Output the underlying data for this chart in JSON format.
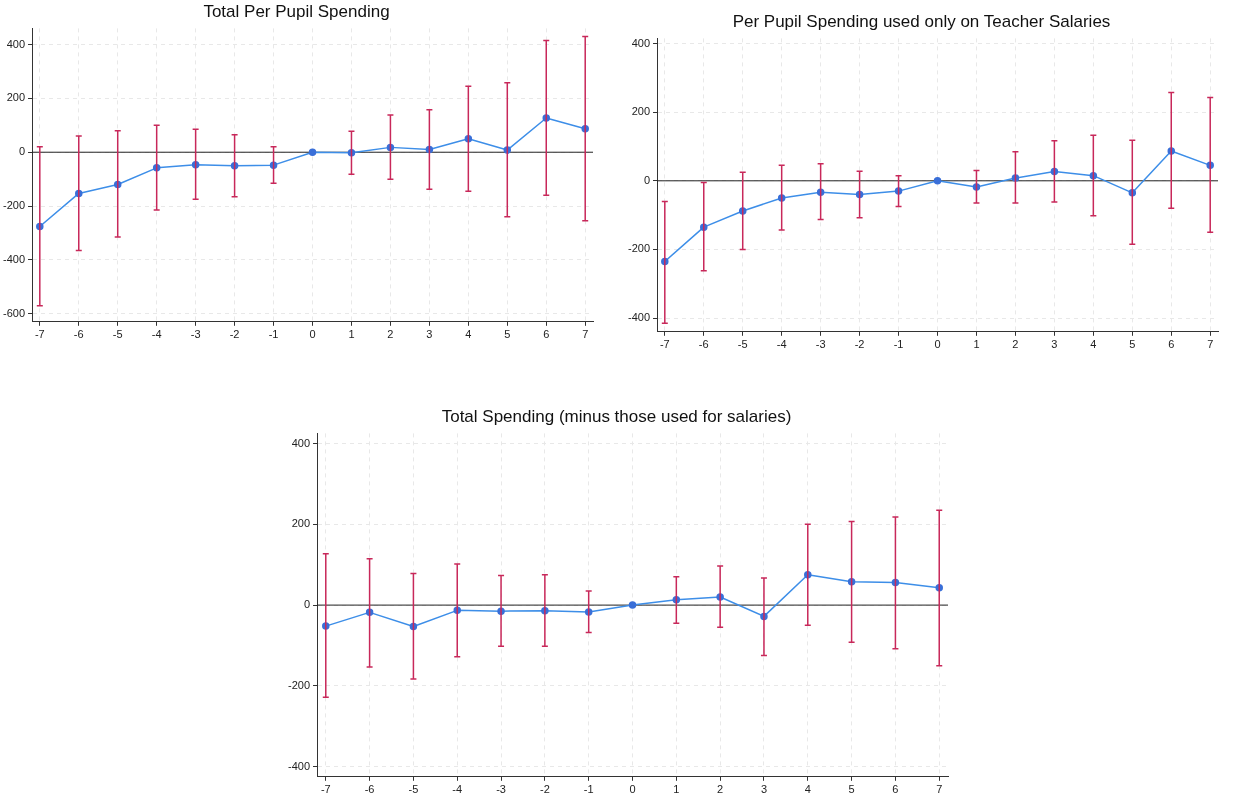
{
  "chart_data": [
    {
      "type": "line",
      "title": "Total Per Pupil Spending",
      "x": [
        -7,
        -6,
        -5,
        -4,
        -3,
        -2,
        -1,
        0,
        1,
        2,
        3,
        4,
        5,
        6,
        7
      ],
      "series": [
        {
          "color": "#3d8ee8",
          "values": [
            -276,
            -153,
            -120,
            -58,
            -47,
            -50,
            -48,
            0,
            -2,
            18,
            10,
            50,
            8,
            127,
            87
          ],
          "errors": [
            [
              -570,
              20
            ],
            [
              -365,
              60
            ],
            [
              -315,
              80
            ],
            [
              -215,
              100
            ],
            [
              -175,
              85
            ],
            [
              -165,
              65
            ],
            [
              -115,
              20
            ],
            null,
            [
              -82,
              78
            ],
            [
              -100,
              138
            ],
            [
              -138,
              158
            ],
            [
              -145,
              245
            ],
            [
              -240,
              258
            ],
            [
              -160,
              415
            ],
            [
              -255,
              430
            ]
          ]
        }
      ],
      "xlim": [
        -7.2,
        7.2
      ],
      "xticks": [
        -7,
        -6,
        -5,
        -4,
        -3,
        -2,
        -1,
        0,
        1,
        2,
        3,
        4,
        5,
        6,
        7
      ],
      "ylim": [
        -630,
        460
      ],
      "yticks": [
        -600,
        -400,
        -200,
        0,
        200,
        400
      ],
      "ref_lines": [
        {
          "axis": "y",
          "value": 0,
          "color": "#222222"
        }
      ],
      "grid": true,
      "legend": false,
      "marker": "circle",
      "line_style": "solid"
    },
    {
      "type": "line",
      "title": "Per Pupil Spending used only on Teacher Salaries",
      "x": [
        -7,
        -6,
        -5,
        -4,
        -3,
        -2,
        -1,
        0,
        1,
        2,
        3,
        4,
        5,
        6,
        7
      ],
      "series": [
        {
          "color": "#3d8ee8",
          "values": [
            -235,
            -135,
            -88,
            -50,
            -33,
            -40,
            -30,
            0,
            -18,
            8,
            27,
            15,
            -35,
            87,
            45
          ],
          "errors": [
            [
              -415,
              -60
            ],
            [
              -262,
              -5
            ],
            [
              -200,
              25
            ],
            [
              -143,
              45
            ],
            [
              -113,
              50
            ],
            [
              -108,
              28
            ],
            [
              -75,
              15
            ],
            null,
            [
              -65,
              30
            ],
            [
              -65,
              85
            ],
            [
              -62,
              117
            ],
            [
              -102,
              133
            ],
            [
              -185,
              118
            ],
            [
              -80,
              257
            ],
            [
              -150,
              243
            ]
          ]
        }
      ],
      "xlim": [
        -7.2,
        7.2
      ],
      "xticks": [
        -7,
        -6,
        -5,
        -4,
        -3,
        -2,
        -1,
        0,
        1,
        2,
        3,
        4,
        5,
        6,
        7
      ],
      "ylim": [
        -440,
        415
      ],
      "yticks": [
        -400,
        -200,
        0,
        200,
        400
      ],
      "ref_lines": [
        {
          "axis": "y",
          "value": 0,
          "color": "#222222"
        }
      ],
      "grid": true,
      "legend": false,
      "marker": "circle",
      "line_style": "solid"
    },
    {
      "type": "line",
      "title": "Total Spending (minus those used for salaries)",
      "x": [
        -7,
        -6,
        -5,
        -4,
        -3,
        -2,
        -1,
        0,
        1,
        2,
        3,
        4,
        5,
        6,
        7
      ],
      "series": [
        {
          "color": "#3d8ee8",
          "values": [
            -52,
            -18,
            -53,
            -13,
            -15,
            -14,
            -17,
            0,
            13,
            20,
            -28,
            75,
            58,
            56,
            43
          ],
          "errors": [
            [
              -228,
              127
            ],
            [
              -153,
              115
            ],
            [
              -183,
              78
            ],
            [
              -128,
              102
            ],
            [
              -102,
              73
            ],
            [
              -102,
              75
            ],
            [
              -68,
              35
            ],
            null,
            [
              -45,
              70
            ],
            [
              -55,
              97
            ],
            [
              -125,
              67
            ],
            [
              -50,
              200
            ],
            [
              -92,
              207
            ],
            [
              -108,
              218
            ],
            [
              -150,
              235
            ]
          ]
        }
      ],
      "xlim": [
        -7.2,
        7.2
      ],
      "xticks": [
        -7,
        -6,
        -5,
        -4,
        -3,
        -2,
        -1,
        0,
        1,
        2,
        3,
        4,
        5,
        6,
        7
      ],
      "ylim": [
        -425,
        425
      ],
      "yticks": [
        -400,
        -200,
        0,
        200,
        400
      ],
      "ref_lines": [
        {
          "axis": "y",
          "value": 0,
          "color": "#222222"
        }
      ],
      "grid": true,
      "legend": false,
      "marker": "circle",
      "line_style": "solid"
    }
  ]
}
